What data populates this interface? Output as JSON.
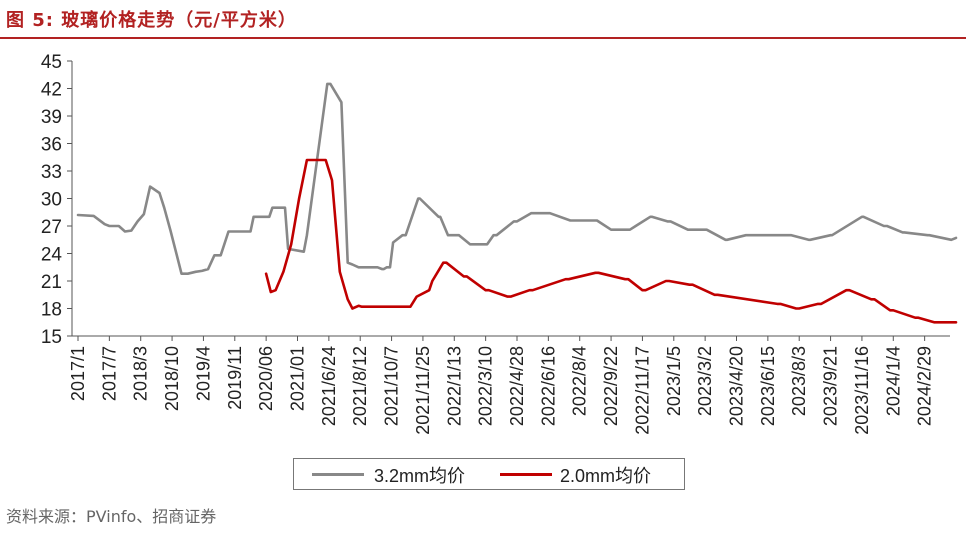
{
  "title": "图 5:  玻璃价格走势（元/平方米）",
  "source": "资料来源：PVinfo、招商证券",
  "colors": {
    "series1": "#888888",
    "series2": "#c00000",
    "title": "#b22222"
  },
  "chart_data": {
    "type": "line",
    "title": "图 5:  玻璃价格走势（元/平方米）",
    "ylim": [
      15,
      45
    ],
    "yticks": [
      15,
      18,
      21,
      24,
      27,
      30,
      33,
      36,
      39,
      42,
      45
    ],
    "xlabel": "",
    "ylabel": "",
    "grid": false,
    "legend_position": "bottom",
    "xtick_labels": [
      "2017/1",
      "2017/7",
      "2018/3",
      "2018/10",
      "2019/4",
      "2019/11",
      "2020/06",
      "2021/01",
      "2021/6/24",
      "2021/8/12",
      "2021/10/7",
      "2021/11/25",
      "2022/1/13",
      "2022/3/10",
      "2022/4/28",
      "2022/6/16",
      "2022/8/4",
      "2022/9/22",
      "2022/11/17",
      "2023/1/5",
      "2023/3/2",
      "2023/4/20",
      "2023/6/15",
      "2023/8/3",
      "2023/9/21",
      "2023/11/16",
      "2024/1/4",
      "2024/2/29"
    ],
    "series": [
      {
        "name": "3.2mm均价",
        "x": [
          0,
          0.5,
          0.85,
          1.0,
          1.3,
          1.5,
          1.7,
          1.9,
          2.1,
          2.3,
          2.6,
          2.75,
          2.95,
          3.1,
          3.3,
          3.5,
          3.75,
          3.95,
          4.15,
          4.35,
          4.55,
          4.8,
          5.0,
          5.1,
          5.2,
          5.5,
          5.6,
          6.1,
          6.2,
          6.6,
          6.7,
          7.2,
          7.3,
          7.95,
          8.05,
          8.4,
          8.6,
          8.75,
          8.95,
          9.1,
          9.25,
          9.3,
          9.55,
          9.7,
          9.75,
          9.85,
          9.95,
          10.05,
          10.35,
          10.45,
          10.85,
          10.9,
          11.5,
          11.55,
          11.8,
          11.9,
          12.05,
          12.15,
          12.5,
          12.6,
          13.0,
          13.05,
          13.25,
          13.35,
          13.9,
          14.0,
          14.45,
          14.55,
          15.0,
          15.05,
          15.7,
          15.8,
          16.5,
          16.55,
          17.0,
          17.1,
          17.5,
          17.6,
          18.25,
          18.3,
          18.8,
          18.9,
          19.45,
          19.55,
          20.0,
          20.05,
          20.65,
          20.7,
          21.3,
          21.35,
          22.7,
          22.75,
          23.3,
          23.35,
          24.0,
          24.05,
          25.0,
          25.05,
          25.7,
          25.8,
          26.3,
          26.35,
          27.1,
          27.15,
          27.85,
          28.0
        ],
        "y": [
          28.2,
          28.1,
          27.2,
          27.0,
          27.0,
          26.4,
          26.5,
          27.5,
          28.3,
          31.3,
          30.6,
          29.0,
          26.5,
          24.5,
          21.8,
          21.8,
          22.0,
          22.1,
          22.3,
          23.8,
          23.8,
          26.4,
          26.4,
          26.4,
          26.4,
          26.4,
          28.0,
          28.0,
          29.0,
          29.0,
          24.5,
          24.2,
          26.0,
          42.5,
          42.5,
          40.5,
          23.0,
          22.8,
          22.5,
          22.5,
          22.5,
          22.5,
          22.5,
          22.3,
          22.3,
          22.5,
          22.5,
          25.2,
          26.0,
          26.0,
          30.0,
          30.0,
          28.0,
          28.0,
          26.0,
          26.0,
          26.0,
          26.0,
          25.0,
          25.0,
          25.0,
          25.0,
          26.0,
          26.0,
          27.5,
          27.5,
          28.4,
          28.4,
          28.4,
          28.4,
          27.6,
          27.6,
          27.6,
          27.6,
          26.6,
          26.6,
          26.6,
          26.6,
          28.0,
          28.0,
          27.5,
          27.5,
          26.6,
          26.6,
          26.6,
          26.6,
          25.5,
          25.5,
          26.0,
          26.0,
          26.0,
          26.0,
          25.5,
          25.5,
          26.0,
          26.0,
          28.0,
          28.0,
          27.0,
          27.0,
          26.3,
          26.3,
          26.0,
          26.0,
          25.5,
          25.7
        ]
      },
      {
        "name": "2.0mm均价",
        "x": [
          6.0,
          6.15,
          6.3,
          6.55,
          6.8,
          7.05,
          7.3,
          7.55,
          7.9,
          8.1,
          8.35,
          8.6,
          8.75,
          8.95,
          9.05,
          9.2,
          9.4,
          9.7,
          9.9,
          10.1,
          10.3,
          10.6,
          10.8,
          11.2,
          11.3,
          11.65,
          11.75,
          12.3,
          12.4,
          13.0,
          13.1,
          13.7,
          13.8,
          14.4,
          14.5,
          15.55,
          15.65,
          16.5,
          16.6,
          17.45,
          17.55,
          18.0,
          18.1,
          18.75,
          18.85,
          19.5,
          19.6,
          20.3,
          20.4,
          22.3,
          22.4,
          22.9,
          23.0,
          23.6,
          23.7,
          24.5,
          24.6,
          25.3,
          25.4,
          25.9,
          26.0,
          26.7,
          26.8,
          27.3,
          27.4,
          28.0
        ],
        "y": [
          21.8,
          19.8,
          20.0,
          22.0,
          25.0,
          30.0,
          34.2,
          34.2,
          34.2,
          32.0,
          22.0,
          19.0,
          18.0,
          18.3,
          18.2,
          18.2,
          18.2,
          18.2,
          18.2,
          18.2,
          18.2,
          18.2,
          19.3,
          20.0,
          21.0,
          23.0,
          23.0,
          21.5,
          21.5,
          20.0,
          20.0,
          19.3,
          19.3,
          20.0,
          20.0,
          21.2,
          21.2,
          21.9,
          21.9,
          21.2,
          21.2,
          20.0,
          20.0,
          21.0,
          21.0,
          20.6,
          20.6,
          19.5,
          19.5,
          18.5,
          18.5,
          18.0,
          18.0,
          18.5,
          18.5,
          20.0,
          20.0,
          19.0,
          19.0,
          17.8,
          17.8,
          17.0,
          17.0,
          16.5,
          16.5,
          16.5
        ]
      }
    ]
  }
}
